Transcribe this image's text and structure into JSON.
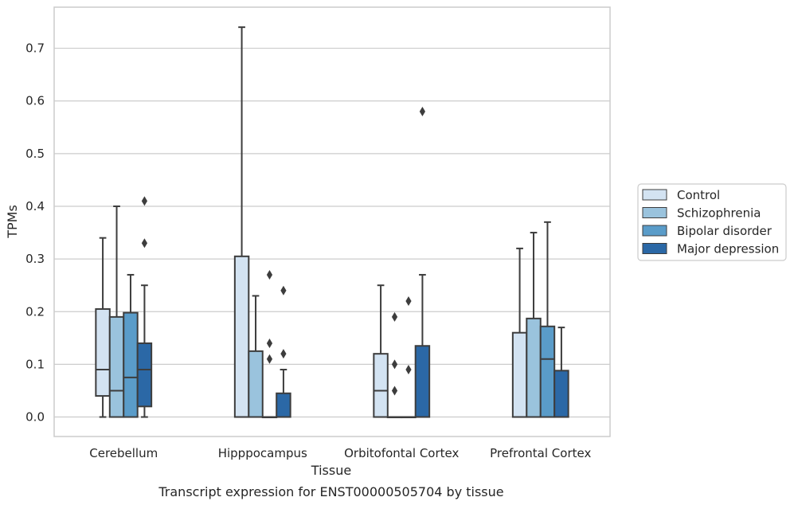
{
  "chart_data": {
    "type": "box",
    "title": "",
    "caption": "Transcript expression for ENST00000505704 by tissue",
    "xlabel": "Tissue",
    "ylabel": "TPMs",
    "ylim": [
      -0.037,
      0.778
    ],
    "yticks": [
      0.0,
      0.1,
      0.2,
      0.3,
      0.4,
      0.5,
      0.6,
      0.7
    ],
    "ytick_labels": [
      "0.0",
      "0.1",
      "0.2",
      "0.3",
      "0.4",
      "0.5",
      "0.6",
      "0.7"
    ],
    "grid": "horizontal",
    "legend_position": "right",
    "categories": [
      "Cerebellum",
      "Hipppocampus",
      "Orbitofontal Cortex",
      "Prefrontal Cortex"
    ],
    "series": [
      {
        "name": "Control",
        "color": "#d3e3f2",
        "boxes": [
          {
            "q1": 0.04,
            "median": 0.09,
            "q3": 0.205,
            "whislo": 0.0,
            "whishi": 0.34,
            "fliers": []
          },
          {
            "q1": 0.0,
            "median": 0.0,
            "q3": 0.305,
            "whislo": 0.0,
            "whishi": 0.74,
            "fliers": []
          },
          {
            "q1": 0.0,
            "median": 0.05,
            "q3": 0.12,
            "whislo": 0.0,
            "whishi": 0.25,
            "fliers": []
          },
          {
            "q1": 0.0,
            "median": 0.0,
            "q3": 0.16,
            "whislo": 0.0,
            "whishi": 0.32,
            "fliers": []
          }
        ]
      },
      {
        "name": "Schizophrenia",
        "color": "#9ac3dd",
        "boxes": [
          {
            "q1": 0.0,
            "median": 0.05,
            "q3": 0.19,
            "whislo": 0.0,
            "whishi": 0.4,
            "fliers": []
          },
          {
            "q1": 0.0,
            "median": 0.0,
            "q3": 0.125,
            "whislo": 0.0,
            "whishi": 0.23,
            "fliers": []
          },
          {
            "q1": 0.0,
            "median": 0.0,
            "q3": 0.0,
            "whislo": 0.0,
            "whishi": 0.0,
            "fliers": [
              0.05,
              0.1,
              0.19
            ]
          },
          {
            "q1": 0.0,
            "median": 0.0,
            "q3": 0.187,
            "whislo": 0.0,
            "whishi": 0.35,
            "fliers": []
          }
        ]
      },
      {
        "name": "Bipolar disorder",
        "color": "#5a9cc9",
        "boxes": [
          {
            "q1": 0.0,
            "median": 0.075,
            "q3": 0.198,
            "whislo": 0.0,
            "whishi": 0.27,
            "fliers": []
          },
          {
            "q1": 0.0,
            "median": 0.0,
            "q3": 0.0,
            "whislo": 0.0,
            "whishi": 0.0,
            "fliers": [
              0.11,
              0.14,
              0.27
            ]
          },
          {
            "q1": 0.0,
            "median": 0.0,
            "q3": 0.0,
            "whislo": 0.0,
            "whishi": 0.0,
            "fliers": [
              0.09,
              0.22
            ]
          },
          {
            "q1": 0.0,
            "median": 0.11,
            "q3": 0.172,
            "whislo": 0.0,
            "whishi": 0.37,
            "fliers": []
          }
        ]
      },
      {
        "name": "Major depression",
        "color": "#2b68a6",
        "boxes": [
          {
            "q1": 0.02,
            "median": 0.09,
            "q3": 0.14,
            "whislo": 0.0,
            "whishi": 0.25,
            "fliers": [
              0.33,
              0.41
            ]
          },
          {
            "q1": 0.0,
            "median": 0.0,
            "q3": 0.045,
            "whislo": 0.0,
            "whishi": 0.09,
            "fliers": [
              0.12,
              0.24
            ]
          },
          {
            "q1": 0.0,
            "median": 0.0,
            "q3": 0.135,
            "whislo": 0.0,
            "whishi": 0.27,
            "fliers": [
              0.58
            ]
          },
          {
            "q1": 0.0,
            "median": 0.0,
            "q3": 0.088,
            "whislo": 0.0,
            "whishi": 0.17,
            "fliers": []
          }
        ]
      }
    ]
  }
}
